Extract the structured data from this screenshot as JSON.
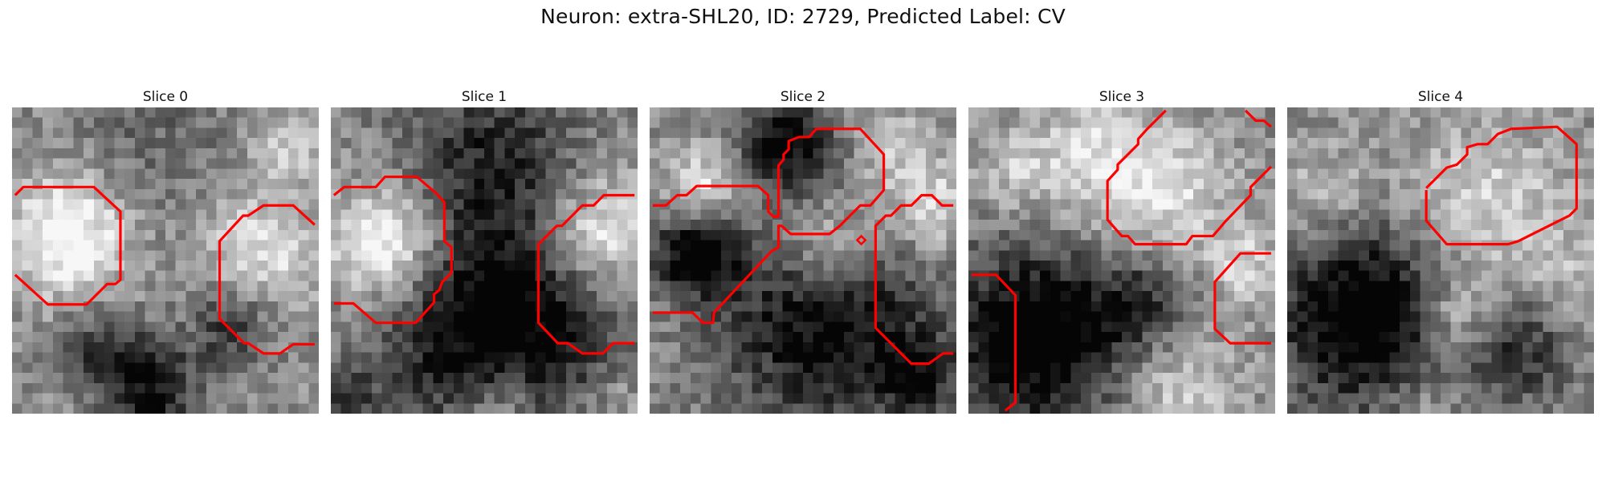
{
  "figure": {
    "title": "Neuron: extra-SHL20, ID: 2729, Predicted Label: CV"
  },
  "slices": [
    {
      "label": "Slice 0"
    },
    {
      "label": "Slice 1"
    },
    {
      "label": "Slice 2"
    },
    {
      "label": "Slice 3"
    },
    {
      "label": "Slice 4"
    }
  ],
  "colors": {
    "contour": "#ff0000",
    "background": "#ffffff"
  }
}
